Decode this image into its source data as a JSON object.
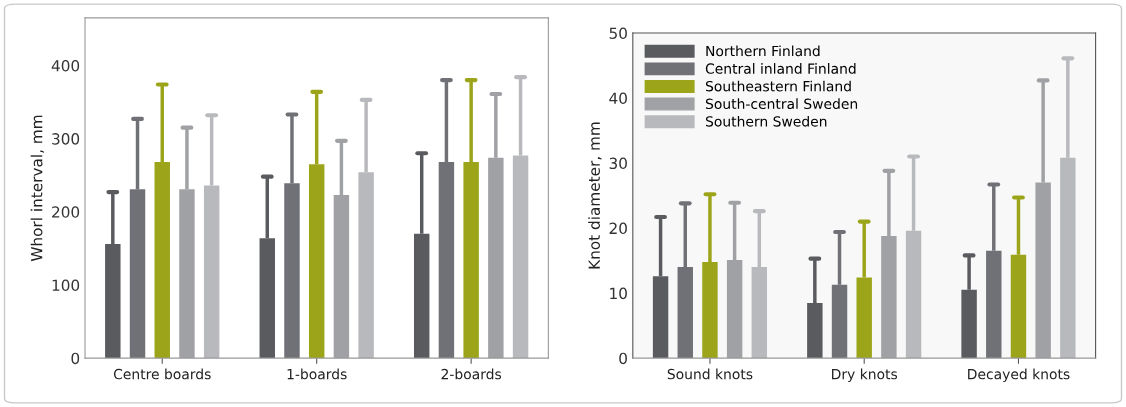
{
  "chart_data": [
    {
      "type": "bar",
      "ylabel": "Whorl interval, mm",
      "categories": [
        "Centre boards",
        "1-boards",
        "2-boards"
      ],
      "ylim": [
        0,
        465
      ],
      "yticks": [
        0,
        100,
        200,
        300,
        400
      ],
      "grid": false,
      "legend": false,
      "series": [
        {
          "color": "#5a5b5f",
          "values": [
            156,
            164,
            170
          ],
          "errors": [
            [
              156,
              227
            ],
            [
              164,
              248
            ],
            [
              170,
              280
            ]
          ]
        },
        {
          "color": "#707176",
          "values": [
            231,
            239,
            268
          ],
          "errors": [
            [
              231,
              327
            ],
            [
              239,
              333
            ],
            [
              268,
              380
            ]
          ]
        },
        {
          "color": "#9ca51a",
          "values": [
            268,
            265,
            268
          ],
          "errors": [
            [
              268,
              374
            ],
            [
              265,
              364
            ],
            [
              268,
              380
            ]
          ]
        },
        {
          "color": "#a0a1a4",
          "values": [
            231,
            223,
            274
          ],
          "errors": [
            [
              231,
              315
            ],
            [
              223,
              297
            ],
            [
              274,
              361
            ]
          ]
        },
        {
          "color": "#b8b9bc",
          "values": [
            236,
            254,
            277
          ],
          "errors": [
            [
              236,
              332
            ],
            [
              254,
              353
            ],
            [
              277,
              384
            ]
          ]
        }
      ]
    },
    {
      "type": "bar",
      "ylabel": "Knot diameter, mm",
      "categories": [
        "Sound knots",
        "Dry knots",
        "Decayed knots"
      ],
      "ylim": [
        0,
        50
      ],
      "yticks": [
        0,
        10,
        20,
        30,
        40,
        50
      ],
      "grid": false,
      "legend": "top left",
      "series": [
        {
          "name": "Northern Finland",
          "color": "#5a5b5f",
          "values": [
            12.6,
            8.5,
            10.5
          ],
          "errors": [
            [
              12.6,
              21.7
            ],
            [
              8.5,
              15.3
            ],
            [
              10.5,
              15.8
            ]
          ]
        },
        {
          "name": "Central inland Finland",
          "color": "#707176",
          "values": [
            14.0,
            11.3,
            16.5
          ],
          "errors": [
            [
              14.0,
              23.8
            ],
            [
              11.3,
              19.4
            ],
            [
              16.5,
              26.7
            ]
          ]
        },
        {
          "name": "Southeastern Finland",
          "color": "#9ca51a",
          "values": [
            14.8,
            12.4,
            15.9
          ],
          "errors": [
            [
              14.8,
              25.2
            ],
            [
              12.4,
              21.0
            ],
            [
              15.9,
              24.7
            ]
          ]
        },
        {
          "name": "South-central Sweden",
          "color": "#a0a1a4",
          "values": [
            15.1,
            18.8,
            27.0
          ],
          "errors": [
            [
              15.1,
              23.9
            ],
            [
              18.8,
              28.8
            ],
            [
              27.0,
              42.7
            ]
          ]
        },
        {
          "name": "Southern Sweden",
          "color": "#b8b9bc",
          "values": [
            14.0,
            19.6,
            30.8
          ],
          "errors": [
            [
              14.0,
              22.6
            ],
            [
              19.6,
              31.0
            ],
            [
              30.8,
              46.1
            ]
          ]
        }
      ]
    }
  ]
}
